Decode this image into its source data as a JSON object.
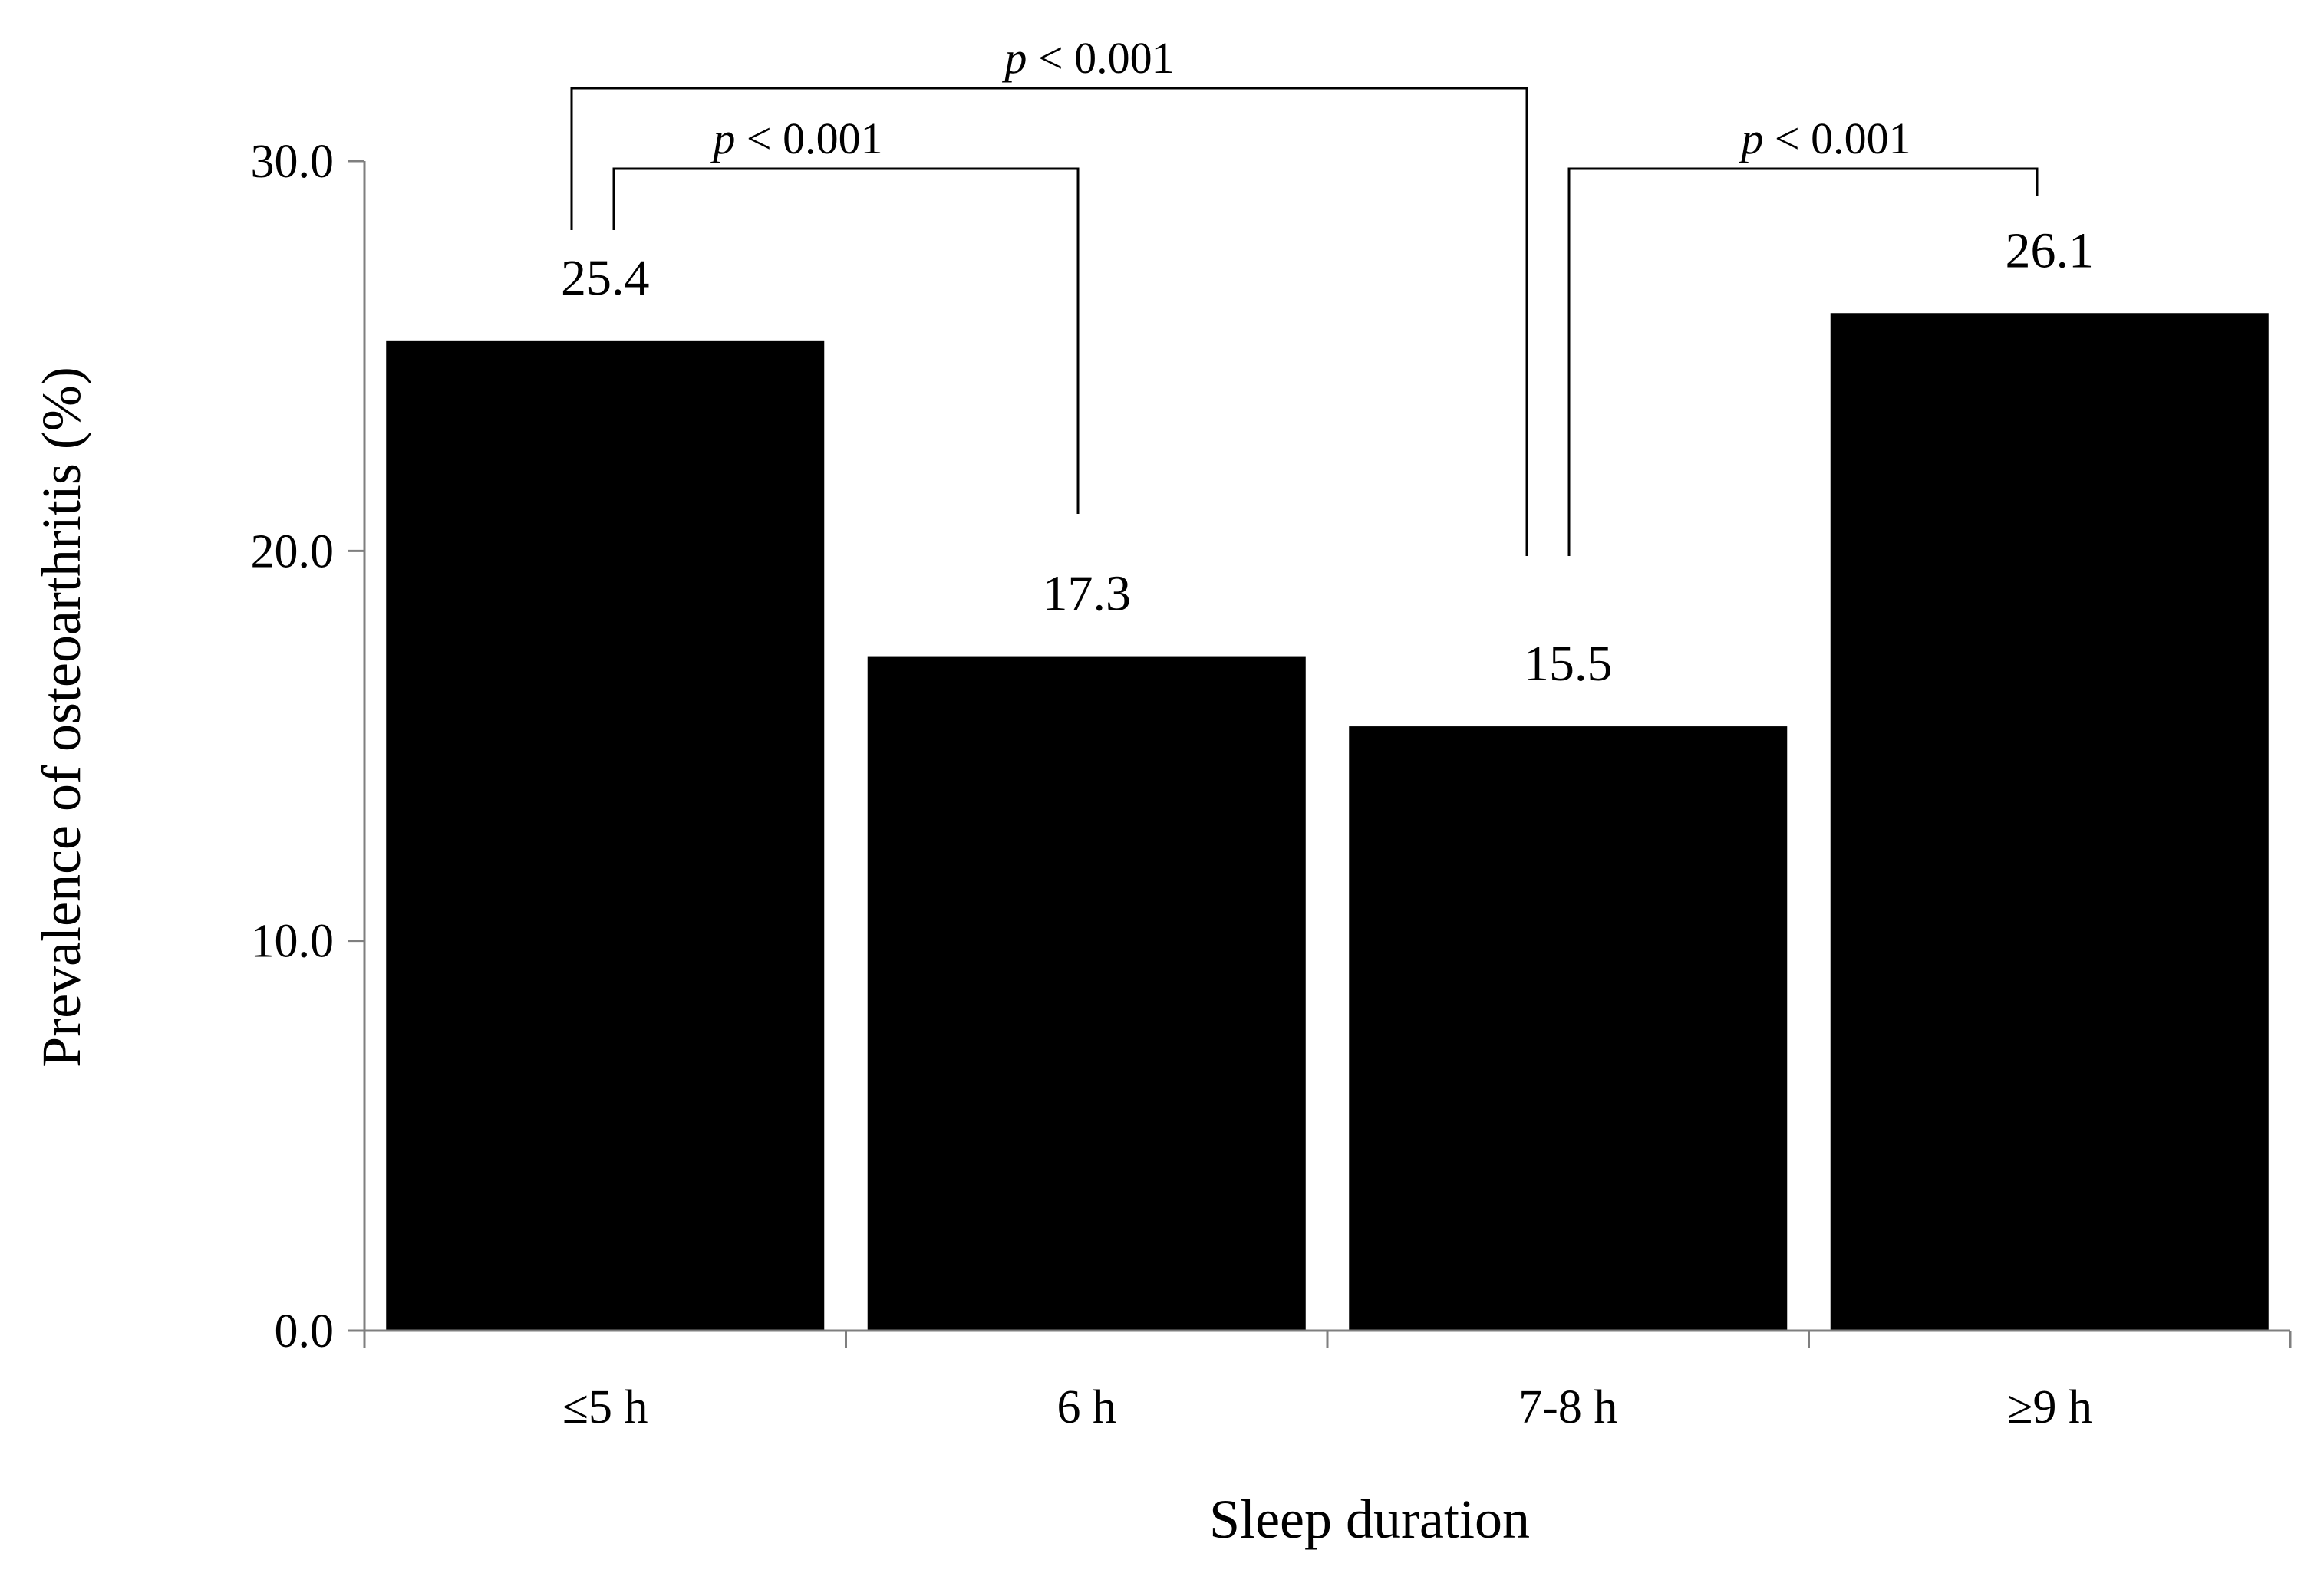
{
  "chart_data": {
    "type": "bar",
    "title": "",
    "xlabel": "Sleep duration",
    "ylabel": "Prevalence of osteoarthritis (%)",
    "categories": [
      "≤5 h",
      "6 h",
      "7-8 h",
      "≥9 h"
    ],
    "values": [
      25.4,
      17.3,
      15.5,
      26.1
    ],
    "value_labels": [
      "25.4",
      "17.3",
      "15.5",
      "26.1"
    ],
    "ylim": [
      0,
      30
    ],
    "yticks": [
      0,
      10,
      20,
      30
    ],
    "ytick_labels": [
      "0.0",
      "10.0",
      "20.0",
      "30.0"
    ],
    "grid": false,
    "bar_color": "#000000",
    "comparisons": [
      {
        "from": "≤5 h",
        "to": "6 h",
        "p_symbol": "p",
        "p_text": " < 0.001"
      },
      {
        "from": "≤5 h",
        "to": "7-8 h",
        "p_symbol": "p",
        "p_text": " < 0.001"
      },
      {
        "from": "7-8 h",
        "to": "≥9 h",
        "p_symbol": "p",
        "p_text": " < 0.001"
      }
    ]
  }
}
